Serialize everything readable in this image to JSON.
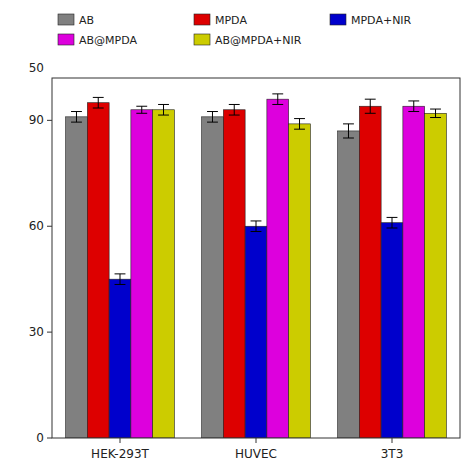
{
  "chart_data": {
    "type": "bar",
    "categories": [
      "HEK-293T",
      "HUVEC",
      "3T3"
    ],
    "series": [
      {
        "name": "AB",
        "color": "#808080",
        "values": [
          91,
          91,
          87
        ],
        "errors": [
          1.5,
          1.5,
          2.0
        ]
      },
      {
        "name": "MPDA",
        "color": "#dd0000",
        "values": [
          95,
          93,
          94
        ],
        "errors": [
          1.5,
          1.5,
          2.0
        ]
      },
      {
        "name": "MPDA+NIR",
        "color": "#0000cc",
        "values": [
          45,
          60,
          61
        ],
        "errors": [
          1.5,
          1.5,
          1.5
        ]
      },
      {
        "name": "AB@MPDA",
        "color": "#dd00dd",
        "values": [
          93,
          96,
          94
        ],
        "errors": [
          1.0,
          1.5,
          1.5
        ]
      },
      {
        "name": "AB@MPDA+NIR",
        "color": "#cccc00",
        "values": [
          93,
          89,
          92
        ],
        "errors": [
          1.5,
          1.5,
          1.2
        ]
      }
    ],
    "ylim": [
      0,
      102
    ],
    "yticks": [
      0,
      30,
      60,
      90
    ],
    "annotations": [
      {
        "text": "50"
      }
    ],
    "grid": false,
    "legend": "top"
  }
}
